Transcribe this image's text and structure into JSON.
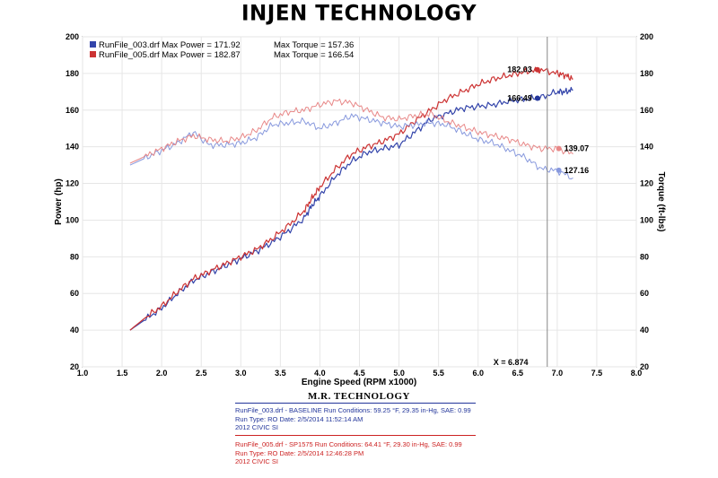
{
  "header": {
    "title": "INJEN TECHNOLOGY"
  },
  "footer": {
    "title": "M.R. TECHNOLOGY"
  },
  "run1": {
    "line1": "RunFile_003.drf - BASELINE   Run Conditions: 59.25 °F, 29.35 in-Hg, SAE: 0.99",
    "line2": "Run Type: RO  Date: 2/5/2014 11:52:14 AM",
    "line3": "2012 CIVIC SI"
  },
  "run2": {
    "line1": "RunFile_005.drf - SP1575   Run Conditions: 64.41 °F, 29.30 in-Hg, SAE: 0.99",
    "line2": "Run Type: RO  Date: 2/5/2014 12:46:28 PM",
    "line3": "2012 CIVIC SI"
  },
  "chart_data": {
    "type": "line",
    "xlabel": "Engine Speed (RPM x1000)",
    "ylabel": "Power (hp)",
    "ylabel_right": "Torque (ft-lbs)",
    "xlim": [
      1.0,
      8.0
    ],
    "ylim": [
      20,
      200
    ],
    "ylim_right": [
      20,
      200
    ],
    "x_ticks": [
      "1.0",
      "1.5",
      "2.0",
      "2.5",
      "3.0",
      "3.5",
      "4.0",
      "4.5",
      "5.0",
      "5.5",
      "6.0",
      "6.5",
      "7.0",
      "7.5",
      "8.0"
    ],
    "y_ticks": [
      "20",
      "40",
      "60",
      "80",
      "100",
      "120",
      "140",
      "160",
      "180",
      "200"
    ],
    "legend": [
      {
        "text": "RunFile_003.drf Max Power = 171.92",
        "torque_text": "Max Torque = 157.36",
        "color": "#3344aa"
      },
      {
        "text": "RunFile_005.drf Max Power = 182.87",
        "torque_text": "Max Torque = 166.54",
        "color": "#cc3333"
      }
    ],
    "cursor": {
      "x": 6.874,
      "label": "X = 6.874"
    },
    "peak_labels": [
      {
        "text": "182.03",
        "x": 6.75,
        "y": 182.03,
        "color": "#cc3333",
        "side": "left"
      },
      {
        "text": "166.49",
        "x": 6.75,
        "y": 166.49,
        "color": "#22359a",
        "side": "left"
      },
      {
        "text": "139.07",
        "x": 7.02,
        "y": 139.07,
        "color": "#e88888",
        "side": "right"
      },
      {
        "text": "127.16",
        "x": 7.02,
        "y": 127.16,
        "color": "#8899dd",
        "side": "right"
      }
    ],
    "series": [
      {
        "name": "RunFile_003.drf Power",
        "kind": "power",
        "color": "#3344aa",
        "x": [
          1.6,
          1.8,
          2.0,
          2.2,
          2.4,
          2.6,
          2.8,
          3.0,
          3.2,
          3.4,
          3.6,
          3.8,
          3.9,
          4.0,
          4.2,
          4.4,
          4.6,
          4.8,
          5.0,
          5.2,
          5.4,
          5.6,
          5.8,
          6.0,
          6.2,
          6.4,
          6.6,
          6.8,
          7.0,
          7.1,
          7.2
        ],
        "y": [
          40,
          46,
          52,
          60,
          67,
          71,
          75,
          79,
          83,
          88,
          94,
          101,
          108,
          113,
          124,
          132,
          137,
          139,
          141,
          148,
          155,
          158,
          161,
          162,
          163,
          165,
          166,
          167,
          170,
          170,
          171
        ]
      },
      {
        "name": "RunFile_005.drf Power",
        "kind": "power",
        "color": "#cc3333",
        "x": [
          1.6,
          1.8,
          2.0,
          2.2,
          2.4,
          2.6,
          2.8,
          3.0,
          3.2,
          3.4,
          3.6,
          3.8,
          3.9,
          4.0,
          4.2,
          4.4,
          4.6,
          4.8,
          5.0,
          5.2,
          5.4,
          5.6,
          5.8,
          6.0,
          6.2,
          6.4,
          6.6,
          6.8,
          7.0,
          7.1,
          7.2
        ],
        "y": [
          40,
          47,
          53,
          61,
          68,
          72,
          76,
          80,
          84,
          90,
          97,
          105,
          112,
          118,
          128,
          136,
          140,
          143,
          147,
          154,
          160,
          166,
          170,
          174,
          177,
          179,
          181,
          182,
          180,
          179,
          177
        ]
      },
      {
        "name": "RunFile_003.drf Torque",
        "kind": "torque",
        "color": "#8899dd",
        "x": [
          1.6,
          1.8,
          2.0,
          2.2,
          2.4,
          2.6,
          2.8,
          3.0,
          3.2,
          3.4,
          3.6,
          3.8,
          4.0,
          4.2,
          4.4,
          4.6,
          4.8,
          5.0,
          5.2,
          5.4,
          5.6,
          5.8,
          6.0,
          6.2,
          6.4,
          6.6,
          6.8,
          7.0,
          7.2
        ],
        "y": [
          130,
          134,
          138,
          142,
          148,
          141,
          141,
          142,
          145,
          152,
          153,
          154,
          150,
          153,
          157,
          155,
          153,
          151,
          152,
          153,
          152,
          148,
          144,
          142,
          138,
          134,
          128,
          127,
          123
        ]
      },
      {
        "name": "RunFile_005.drf Torque",
        "kind": "torque",
        "color": "#e88888",
        "x": [
          1.6,
          1.8,
          2.0,
          2.2,
          2.4,
          2.6,
          2.8,
          3.0,
          3.2,
          3.4,
          3.6,
          3.8,
          4.0,
          4.2,
          4.4,
          4.6,
          4.8,
          5.0,
          5.2,
          5.4,
          5.6,
          5.8,
          6.0,
          6.2,
          6.4,
          6.6,
          6.8,
          7.0,
          7.2
        ],
        "y": [
          131,
          135,
          139,
          143,
          146,
          144,
          143,
          145,
          149,
          156,
          159,
          160,
          163,
          165,
          164,
          160,
          156,
          155,
          157,
          158,
          154,
          151,
          148,
          146,
          144,
          141,
          139,
          139,
          136
        ]
      }
    ]
  }
}
